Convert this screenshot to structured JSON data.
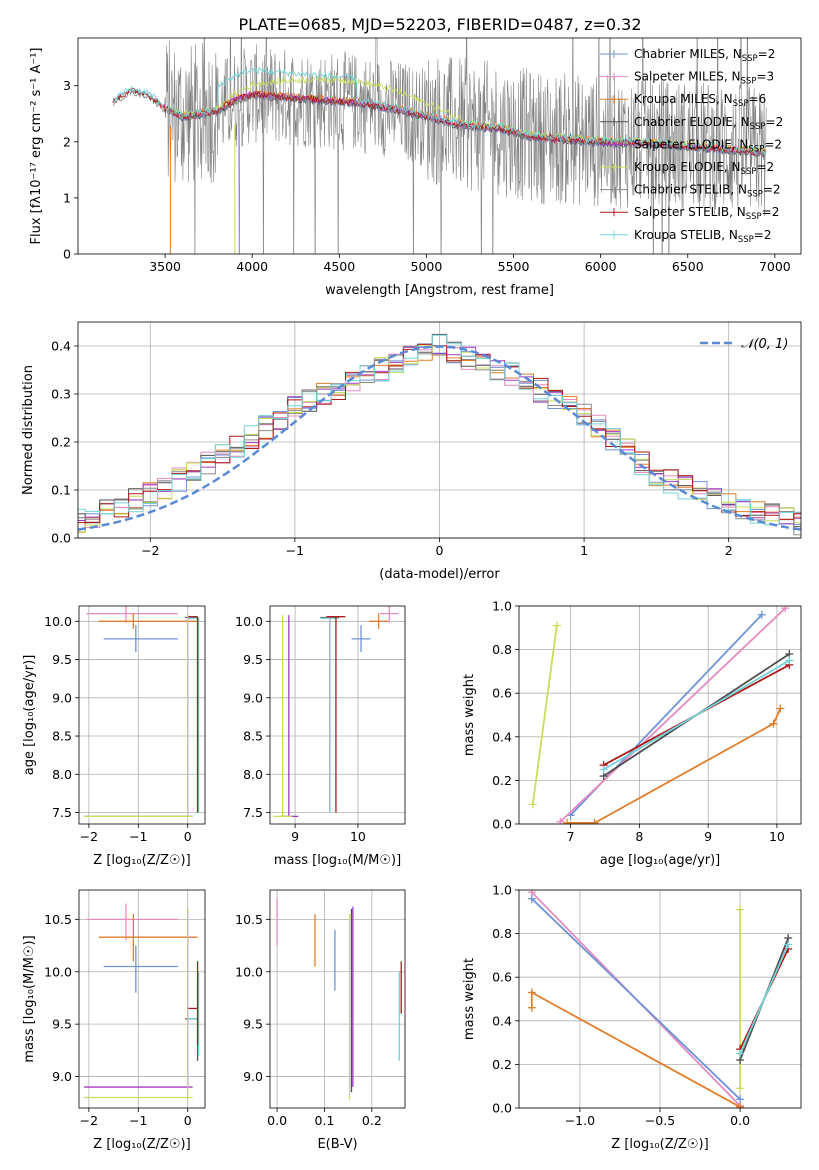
{
  "figure": {
    "title": "PLATE=0685, MJD=52203, FIBERID=0487, z=0.32"
  },
  "colors": {
    "Chabrier MILES": "#6f94d8",
    "Salpeter MILES": "#e68bbf",
    "Kroupa MILES": "#e07e2a",
    "Chabrier ELODIE": "#505050",
    "Salpeter ELODIE": "#a23bc4",
    "Kroupa ELODIE": "#c9dc5c",
    "Chabrier STELIB": "#8a8a8a",
    "Salpeter STELIB": "#b01818",
    "Kroupa STELIB": "#72d3d8",
    "normal": "#5a8ad6",
    "grid": "#b0b0b0"
  },
  "chart_data": [
    {
      "id": "spectrum",
      "type": "line",
      "title": "PLATE=0685, MJD=52203, FIBERID=0487, z=0.32",
      "xlabel": "wavelength [Angstrom, rest frame]",
      "ylabel": "Flux [fλ10⁻¹⁷ erg cm⁻² s⁻¹ A⁻¹]",
      "xlim": [
        3000,
        7150
      ],
      "ylim": [
        0,
        3.85
      ],
      "xticks": [
        3500,
        4000,
        4500,
        5000,
        5500,
        6000,
        6500,
        7000
      ],
      "yticks": [
        0,
        1,
        2,
        3
      ],
      "grid": false,
      "legend_position": "top-right",
      "legend": [
        {
          "label": "Chabrier MILES, N",
          "sub": "SSP",
          "suffix": "=2"
        },
        {
          "label": "Salpeter MILES, N",
          "sub": "SSP",
          "suffix": "=3"
        },
        {
          "label": "Kroupa MILES, N",
          "sub": "SSP",
          "suffix": "=6"
        },
        {
          "label": "Chabrier ELODIE, N",
          "sub": "SSP",
          "suffix": "=2"
        },
        {
          "label": "Salpeter ELODIE, N",
          "sub": "SSP",
          "suffix": "=2"
        },
        {
          "label": "Kroupa ELODIE, N",
          "sub": "SSP",
          "suffix": "=2"
        },
        {
          "label": "Chabrier STELIB, N",
          "sub": "SSP",
          "suffix": "=2"
        },
        {
          "label": "Salpeter STELIB, N",
          "sub": "SSP",
          "suffix": "=2"
        },
        {
          "label": "Kroupa STELIB, N",
          "sub": "SSP",
          "suffix": "=2"
        }
      ],
      "data_noise": "grey noisy observed spectrum from 3200 to 6950 with values scattering between 0 and 3.85",
      "model_continuum": {
        "x": [
          3200,
          3300,
          3400,
          3500,
          3600,
          3700,
          3800,
          3900,
          4000,
          4200,
          4400,
          4600,
          4800,
          5000,
          5200,
          5400,
          5600,
          5800,
          6000,
          6200,
          6400,
          6600,
          6800,
          6950
        ],
        "y": [
          2.72,
          2.92,
          2.85,
          2.6,
          2.45,
          2.5,
          2.55,
          2.75,
          2.85,
          2.8,
          2.75,
          2.7,
          2.6,
          2.45,
          2.3,
          2.25,
          2.1,
          2.05,
          2.0,
          1.98,
          1.95,
          1.9,
          1.85,
          1.8
        ]
      }
    },
    {
      "id": "residuals",
      "type": "line",
      "xlabel": "(data-model)/error",
      "ylabel": "Normed distribution",
      "xlim": [
        -2.5,
        2.5
      ],
      "ylim": [
        0,
        0.45
      ],
      "xticks": [
        -2,
        -1,
        0,
        1,
        2
      ],
      "yticks": [
        0.0,
        0.1,
        0.2,
        0.3,
        0.4
      ],
      "grid": true,
      "legend_position": "top-right",
      "legend": [
        {
          "label": "𝒩(0, 1)"
        }
      ],
      "histogram_bin_width": 0.1,
      "histogram_envelope": {
        "x": [
          -2.5,
          -2.0,
          -1.5,
          -1.0,
          -0.5,
          0.0,
          0.5,
          1.0,
          1.5,
          2.0,
          2.5
        ],
        "y": [
          0.035,
          0.09,
          0.17,
          0.27,
          0.34,
          0.4,
          0.34,
          0.26,
          0.13,
          0.07,
          0.035
        ]
      }
    },
    {
      "id": "age-vs-Z",
      "type": "scatter",
      "xlabel": "Z [log₁₀(Z/Z☉)]",
      "ylabel": "age  [log₁₀(age/yr)]",
      "xlim": [
        -2.2,
        0.35
      ],
      "ylim": [
        7.35,
        10.2
      ],
      "xticks": [
        -2,
        -1,
        0
      ],
      "yticks": [
        7.5,
        8.0,
        8.5,
        9.0,
        9.5,
        10.0
      ],
      "grid": true
    },
    {
      "id": "age-vs-mass",
      "type": "scatter",
      "xlabel": "mass [log₁₀(M/M☉)]",
      "xlim": [
        8.6,
        10.75
      ],
      "ylim": [
        7.35,
        10.2
      ],
      "xticks": [
        9,
        10
      ],
      "yticks": [
        7.5,
        8.0,
        8.5,
        9.0,
        9.5,
        10.0
      ],
      "grid": true
    },
    {
      "id": "weight-vs-age",
      "type": "line",
      "xlabel": "age  [log₁₀(age/yr)]",
      "ylabel": "mass weight",
      "xlim": [
        6.25,
        10.35
      ],
      "ylim": [
        0.0,
        1.0
      ],
      "xticks": [
        7,
        8,
        9,
        10
      ],
      "yticks": [
        0.0,
        0.2,
        0.4,
        0.6,
        0.8,
        1.0
      ],
      "grid": true,
      "series": [
        {
          "key": "Kroupa ELODIE",
          "x": [
            6.45,
            6.8
          ],
          "y": [
            0.09,
            0.91
          ]
        },
        {
          "key": "Chabrier MILES",
          "x": [
            7.0,
            9.78
          ],
          "y": [
            0.04,
            0.96
          ]
        },
        {
          "key": "Salpeter MILES",
          "x": [
            6.85,
            10.12
          ],
          "y": [
            0.01,
            0.99
          ]
        },
        {
          "key": "Kroupa MILES",
          "x": [
            6.95,
            7.35,
            9.95,
            10.05
          ],
          "y": [
            0.005,
            0.005,
            0.46,
            0.53
          ]
        },
        {
          "key": "Chabrier ELODIE",
          "x": [
            7.48,
            10.18
          ],
          "y": [
            0.22,
            0.78
          ]
        },
        {
          "key": "Salpeter STELIB",
          "x": [
            7.48,
            10.18
          ],
          "y": [
            0.27,
            0.73
          ]
        },
        {
          "key": "Kroupa STELIB",
          "x": [
            7.48,
            10.18
          ],
          "y": [
            0.25,
            0.75
          ]
        }
      ]
    },
    {
      "id": "mass-vs-Z",
      "type": "scatter",
      "xlabel": "Z [log₁₀(Z/Z☉)]",
      "ylabel": "mass [log₁₀(M/M☉)]",
      "xlim": [
        -2.2,
        0.35
      ],
      "ylim": [
        8.7,
        10.78
      ],
      "xticks": [
        -2,
        -1,
        0
      ],
      "yticks": [
        9.0,
        9.5,
        10.0,
        10.5
      ],
      "grid": true
    },
    {
      "id": "mass-vs-EBV",
      "type": "scatter",
      "xlabel": "E(B-V)",
      "xlim": [
        -0.015,
        0.27
      ],
      "ylim": [
        8.7,
        10.78
      ],
      "xticks": [
        0.0,
        0.1,
        0.2
      ],
      "yticks": [
        9.0,
        9.5,
        10.0,
        10.5
      ],
      "grid": true
    },
    {
      "id": "weight-vs-Z",
      "type": "line",
      "xlabel": "Z [log₁₀(Z/Z☉)]",
      "ylabel": "mass weight",
      "xlim": [
        -1.38,
        0.38
      ],
      "ylim": [
        0.0,
        1.0
      ],
      "xticks": [
        -1.0,
        -0.5,
        0.0
      ],
      "yticks": [
        0.0,
        0.2,
        0.4,
        0.6,
        0.8,
        1.0
      ],
      "grid": true,
      "series": [
        {
          "key": "Salpeter MILES",
          "x": [
            -1.3,
            0.0
          ],
          "y": [
            0.99,
            0.01
          ]
        },
        {
          "key": "Chabrier MILES",
          "x": [
            -1.3,
            0.0
          ],
          "y": [
            0.96,
            0.04
          ]
        },
        {
          "key": "Kroupa MILES",
          "x": [
            -1.3,
            -1.3,
            0.0
          ],
          "y": [
            0.46,
            0.53,
            0.005
          ]
        },
        {
          "key": "Kroupa ELODIE",
          "x": [
            0.0,
            0.0
          ],
          "y": [
            0.09,
            0.91
          ]
        },
        {
          "key": "Chabrier ELODIE",
          "x": [
            0.0,
            0.3
          ],
          "y": [
            0.22,
            0.78
          ]
        },
        {
          "key": "Salpeter STELIB",
          "x": [
            0.0,
            0.3
          ],
          "y": [
            0.27,
            0.73
          ]
        },
        {
          "key": "Kroupa STELIB",
          "x": [
            0.0,
            0.3
          ],
          "y": [
            0.25,
            0.75
          ]
        }
      ]
    }
  ],
  "error_bars": {
    "age_Z_mass": [
      {
        "key": "Salpeter MILES",
        "Z": -1.25,
        "age": 10.1,
        "mass": 10.5,
        "zlo": -2.05,
        "zhi": -0.2,
        "alo": 9.98,
        "ahi": 10.2,
        "mlo": 10.3,
        "mhi": 10.65
      },
      {
        "key": "Kroupa MILES",
        "Z": -1.1,
        "age": 10.0,
        "mass": 10.33,
        "zlo": -1.8,
        "zhi": 0.2,
        "alo": 9.9,
        "ahi": 10.1,
        "mlo": 10.1,
        "mhi": 10.55
      },
      {
        "key": "Chabrier MILES",
        "Z": -1.05,
        "age": 9.77,
        "mass": 10.05,
        "zlo": -1.7,
        "zhi": -0.2,
        "alo": 9.6,
        "ahi": 9.95,
        "mlo": 9.8,
        "mhi": 10.25
      },
      {
        "key": "Chabrier ELODIE",
        "Z": 0.2,
        "age": 10.05,
        "mass": 9.55,
        "zlo": -0.05,
        "zhi": 0.2,
        "alo": 7.5,
        "ahi": 10.05,
        "mlo": 9.15,
        "mhi": 9.9
      },
      {
        "key": "Kroupa STELIB",
        "Z": 0.22,
        "age": 10.04,
        "mass": 9.55,
        "zlo": 0.0,
        "zhi": 0.22,
        "alo": 7.5,
        "ahi": 10.04,
        "mlo": 9.2,
        "mhi": 10.0
      },
      {
        "key": "Salpeter STELIB",
        "Z": 0.2,
        "age": 10.06,
        "mass": 9.65,
        "zlo": 0.0,
        "zhi": 0.2,
        "alo": 7.5,
        "ahi": 10.06,
        "mlo": 9.3,
        "mhi": 10.1
      },
      {
        "key": "Salpeter ELODIE",
        "Z": 0.0,
        "age": 7.45,
        "mass": 8.9,
        "zlo": -2.1,
        "zhi": 0.1,
        "alo": 7.45,
        "ahi": 10.08,
        "mlo": 8.9,
        "mhi": 10.6
      },
      {
        "key": "Kroupa ELODIE",
        "Z": 0.0,
        "age": 7.45,
        "mass": 8.8,
        "zlo": -2.1,
        "zhi": 0.1,
        "alo": 7.45,
        "ahi": 10.08,
        "mlo": 8.8,
        "mhi": 10.6
      }
    ],
    "ebv_mass": [
      {
        "key": "Salpeter MILES",
        "ebv": 0.0,
        "mlo": 10.25,
        "mhi": 10.7
      },
      {
        "key": "Kroupa MILES",
        "ebv": 0.08,
        "mlo": 10.05,
        "mhi": 10.55
      },
      {
        "key": "Chabrier MILES",
        "ebv": 0.122,
        "mlo": 9.82,
        "mhi": 10.4
      },
      {
        "key": "Kroupa ELODIE",
        "ebv": 0.153,
        "mlo": 8.78,
        "mhi": 10.55
      },
      {
        "key": "Chabrier ELODIE",
        "ebv": 0.157,
        "mlo": 8.85,
        "mhi": 10.6
      },
      {
        "key": "Salpeter ELODIE",
        "ebv": 0.16,
        "mlo": 8.9,
        "mhi": 10.62
      },
      {
        "key": "Salpeter STELIB",
        "ebv": 0.262,
        "mlo": 9.6,
        "mhi": 10.1
      },
      {
        "key": "Kroupa STELIB",
        "ebv": 0.258,
        "mlo": 9.15,
        "mhi": 10.0
      }
    ]
  }
}
